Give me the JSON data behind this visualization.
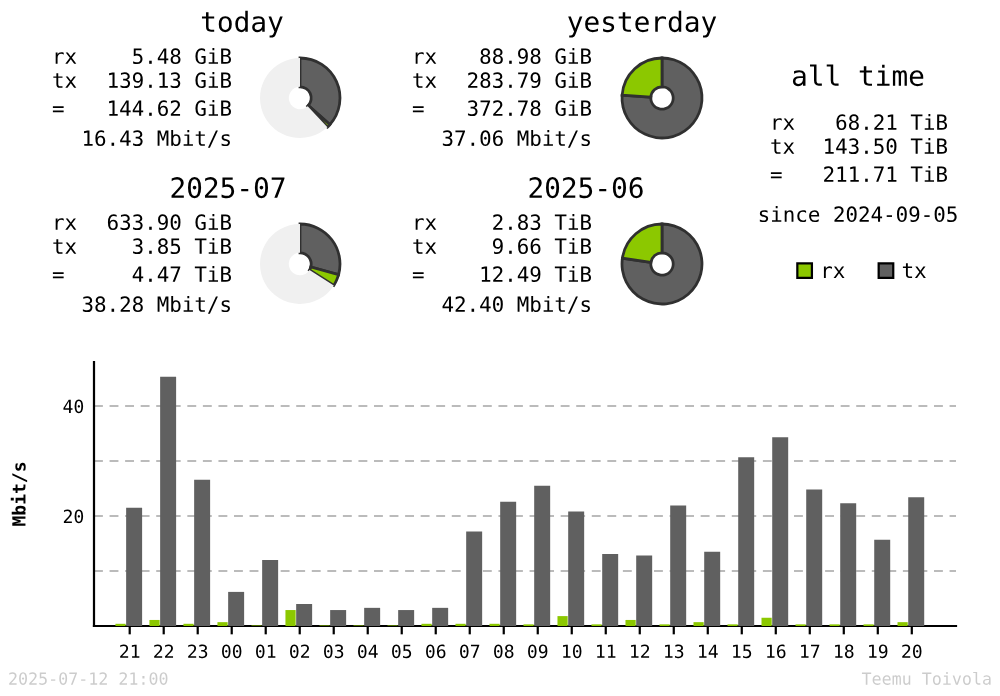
{
  "chart_data": [
    {
      "type": "donut",
      "title": "today",
      "categories": [
        null,
        null,
        null
      ],
      "values": [
        36.6,
        1.4,
        62
      ],
      "colors": [
        "#606060",
        "#8cc800",
        "#f0f0f0"
      ],
      "annotations": [
        "rx",
        "5.48 GiB",
        "tx",
        "139.13 GiB",
        "=",
        "144.62 GiB",
        "16.43 Mbit/s"
      ]
    },
    {
      "type": "donut",
      "title": "yesterday",
      "categories": [
        null,
        null,
        null
      ],
      "values": [
        76.1,
        23.9,
        0
      ],
      "colors": [
        "#606060",
        "#8cc800",
        "#f0f0f0"
      ],
      "annotations": [
        "rx",
        "88.98 GiB",
        "tx",
        "283.79 GiB",
        "=",
        "372.78 GiB",
        "37.06 Mbit/s"
      ]
    },
    {
      "type": "donut",
      "title": "2025-07",
      "categories": [
        null,
        null,
        null
      ],
      "values": [
        29.3,
        4.7,
        66
      ],
      "colors": [
        "#606060",
        "#8cc800",
        "#f0f0f0"
      ],
      "annotations": [
        "rx",
        "633.90 GiB",
        "tx",
        "3.85 TiB",
        "=",
        "4.47 TiB",
        "38.28 Mbit/s"
      ]
    },
    {
      "type": "donut",
      "title": "2025-06",
      "categories": [
        null,
        null,
        null
      ],
      "values": [
        77.3,
        22.7,
        0
      ],
      "colors": [
        "#606060",
        "#8cc800",
        "#f0f0f0"
      ],
      "annotations": [
        "rx",
        "2.83 TiB",
        "tx",
        "9.66 TiB",
        "=",
        "12.49 TiB",
        "42.40 Mbit/s"
      ]
    },
    {
      "type": "other",
      "title": "all time",
      "annotations": [
        "rx",
        "68.21 TiB",
        "tx",
        "143.50 TiB",
        "=",
        "211.71 TiB",
        "since 2024-09-05"
      ]
    },
    {
      "type": "bar",
      "ylabel": "Mbit/s",
      "legend": "top right",
      "grid": "y",
      "categories": [
        "21",
        "22",
        "23",
        "00",
        "01",
        "02",
        "03",
        "04",
        "05",
        "06",
        "07",
        "08",
        "09",
        "10",
        "11",
        "12",
        "13",
        "14",
        "15",
        "16",
        "17",
        "18",
        "19",
        "20"
      ],
      "series": [
        {
          "name": "rx",
          "color": "#8cc800",
          "values": [
            0.4,
            1.1,
            0.4,
            0.7,
            0.1,
            2.9,
            0.1,
            0.1,
            0.1,
            0.4,
            0.4,
            0.4,
            0.3,
            1.8,
            0.3,
            1.1,
            0.3,
            0.7,
            0.3,
            1.5,
            0.3,
            0.3,
            0.3,
            0.7
          ]
        },
        {
          "name": "tx",
          "color": "#606060",
          "values": [
            21.5,
            45.3,
            26.6,
            6.2,
            12.0,
            4.0,
            2.9,
            3.3,
            2.9,
            3.3,
            17.2,
            22.6,
            25.5,
            20.8,
            13.1,
            12.8,
            21.9,
            13.5,
            30.7,
            34.3,
            24.8,
            22.3,
            15.7,
            23.4
          ]
        }
      ],
      "ylim": [
        0,
        48
      ],
      "yticks": [
        {
          "value": 10,
          "label": null
        },
        20,
        {
          "value": 30,
          "label": null
        },
        40
      ],
      "annotations": [
        "2025-07-12 21:00",
        "Teemu Toivola"
      ]
    }
  ]
}
